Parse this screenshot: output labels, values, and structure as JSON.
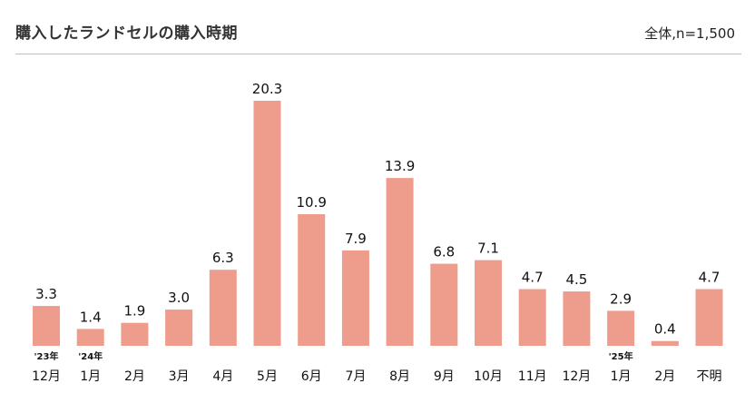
{
  "header": {
    "title": "購入したランドセルの購入時期",
    "note": "全体,n=1,500"
  },
  "chart_data": {
    "type": "bar",
    "categories": [
      "12月",
      "1月",
      "2月",
      "3月",
      "4月",
      "5月",
      "6月",
      "7月",
      "8月",
      "9月",
      "10月",
      "11月",
      "12月",
      "1月",
      "2月",
      "不明"
    ],
    "year_markers": [
      "'23年",
      "'24年",
      "",
      "",
      "",
      "",
      "",
      "",
      "",
      "",
      "",
      "",
      "",
      "'25年",
      "",
      ""
    ],
    "values": [
      3.3,
      1.4,
      1.9,
      3.0,
      6.3,
      20.3,
      10.9,
      7.9,
      13.9,
      6.8,
      7.1,
      4.7,
      4.5,
      2.9,
      0.4,
      4.7
    ],
    "value_labels": [
      "3.3",
      "1.4",
      "1.9",
      "3.0",
      "6.3",
      "20.3",
      "10.9",
      "7.9",
      "13.9",
      "6.8",
      "7.1",
      "4.7",
      "4.5",
      "2.9",
      "0.4",
      "4.7"
    ],
    "title": "購入したランドセルの購入時期",
    "xlabel": "",
    "ylabel": "",
    "ylim": [
      0,
      20.3
    ],
    "grid": false,
    "bar_color": "#ee9c8c"
  }
}
